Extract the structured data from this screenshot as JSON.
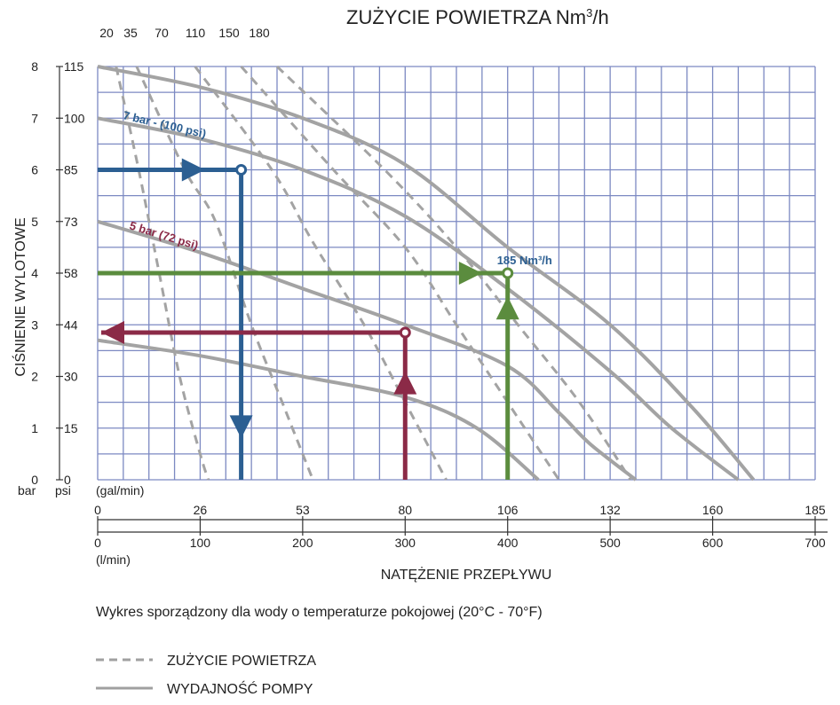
{
  "chart_data": {
    "type": "line",
    "title": "ZUŻYCIE POWIETRZA Nm",
    "title_sup": "3",
    "title_suffix": "/h",
    "top_ticks": [
      "20",
      "35",
      "70",
      "110",
      "150",
      "180"
    ],
    "ylabel": "CIŚNIENIE WYLOTOWE",
    "y_unit_bar": "bar",
    "y_unit_psi": "psi",
    "y_ticks_bar": [
      "0",
      "1",
      "2",
      "3",
      "4",
      "5",
      "6",
      "7",
      "8"
    ],
    "y_ticks_psi": [
      "0",
      "15",
      "30",
      "44",
      "58",
      "73",
      "85",
      "100",
      "115"
    ],
    "x_unit_gal": "(gal/min)",
    "x_ticks_gal": [
      "0",
      "26",
      "53",
      "80",
      "106",
      "132",
      "160",
      "185"
    ],
    "x_unit_l": "(l/min)",
    "x_ticks_l": [
      "0",
      "100",
      "200",
      "300",
      "400",
      "500",
      "600",
      "700"
    ],
    "xlabel": "NATĘŻENIE PRZEPŁYWU",
    "xlim": [
      0,
      700
    ],
    "ylim": [
      0,
      8
    ],
    "grid": true,
    "note": "Wykres sporządzony dla wody o temperaturze pokojowej (20°C - 70°F)",
    "legend": [
      {
        "label": "ZUŻYCIE POWIETRZA",
        "style": "dashed"
      },
      {
        "label": "WYDAJNOŚĆ POMPY",
        "style": "solid"
      }
    ],
    "pump_curves": [
      {
        "name": "",
        "points": [
          [
            0,
            8
          ],
          [
            100,
            7.6
          ],
          [
            200,
            7.0
          ],
          [
            300,
            6.1
          ],
          [
            400,
            4.5
          ],
          [
            500,
            3.0
          ],
          [
            580,
            1.4
          ],
          [
            640,
            0
          ]
        ]
      },
      {
        "name": "7 bar - (100 psi)",
        "points": [
          [
            0,
            7
          ],
          [
            100,
            6.6
          ],
          [
            200,
            6.0
          ],
          [
            300,
            5.1
          ],
          [
            400,
            3.7
          ],
          [
            500,
            2.1
          ],
          [
            560,
            1.0
          ],
          [
            625,
            0
          ]
        ]
      },
      {
        "name": "5 bar (72 psi)",
        "points": [
          [
            0,
            5
          ],
          [
            100,
            4.4
          ],
          [
            200,
            3.7
          ],
          [
            300,
            3.0
          ],
          [
            400,
            2.2
          ],
          [
            450,
            1.3
          ],
          [
            480,
            0.7
          ],
          [
            525,
            0
          ]
        ]
      },
      {
        "name": "",
        "points": [
          [
            0,
            2.7
          ],
          [
            100,
            2.4
          ],
          [
            200,
            2.0
          ],
          [
            300,
            1.6
          ],
          [
            370,
            1.0
          ],
          [
            430,
            0
          ]
        ]
      }
    ],
    "air_curves": [
      {
        "points": [
          [
            18,
            8
          ],
          [
            40,
            6
          ],
          [
            60,
            4
          ],
          [
            80,
            2
          ],
          [
            100,
            0.5
          ],
          [
            108,
            0
          ]
        ]
      },
      {
        "points": [
          [
            38,
            8
          ],
          [
            85,
            6
          ],
          [
            115,
            5
          ],
          [
            150,
            3
          ],
          [
            180,
            1.5
          ],
          [
            210,
            0
          ]
        ]
      },
      {
        "points": [
          [
            95,
            8
          ],
          [
            170,
            6
          ],
          [
            210,
            4.6
          ],
          [
            260,
            3
          ],
          [
            300,
            1.5
          ],
          [
            340,
            0
          ]
        ]
      },
      {
        "points": [
          [
            140,
            8
          ],
          [
            230,
            6
          ],
          [
            300,
            4.5
          ],
          [
            350,
            3
          ],
          [
            400,
            1.5
          ],
          [
            450,
            0
          ]
        ]
      },
      {
        "points": [
          [
            175,
            8
          ],
          [
            280,
            6
          ],
          [
            350,
            4.5
          ],
          [
            410,
            3
          ],
          [
            470,
            1.5
          ],
          [
            520,
            0
          ]
        ]
      }
    ],
    "examples": [
      {
        "color": "#2c5f92",
        "start": [
          0,
          6
        ],
        "corner": [
          140,
          6
        ],
        "end": [
          140,
          0
        ],
        "label": ""
      },
      {
        "color": "#5b8c3e",
        "start": [
          0,
          4
        ],
        "corner": [
          400,
          4
        ],
        "end": [
          400,
          0
        ],
        "label": "185 Nm³/h"
      },
      {
        "color": "#8b2a47",
        "start": [
          300,
          0
        ],
        "corner": [
          300,
          2.85
        ],
        "end": [
          0,
          2.85
        ],
        "label": ""
      }
    ]
  }
}
